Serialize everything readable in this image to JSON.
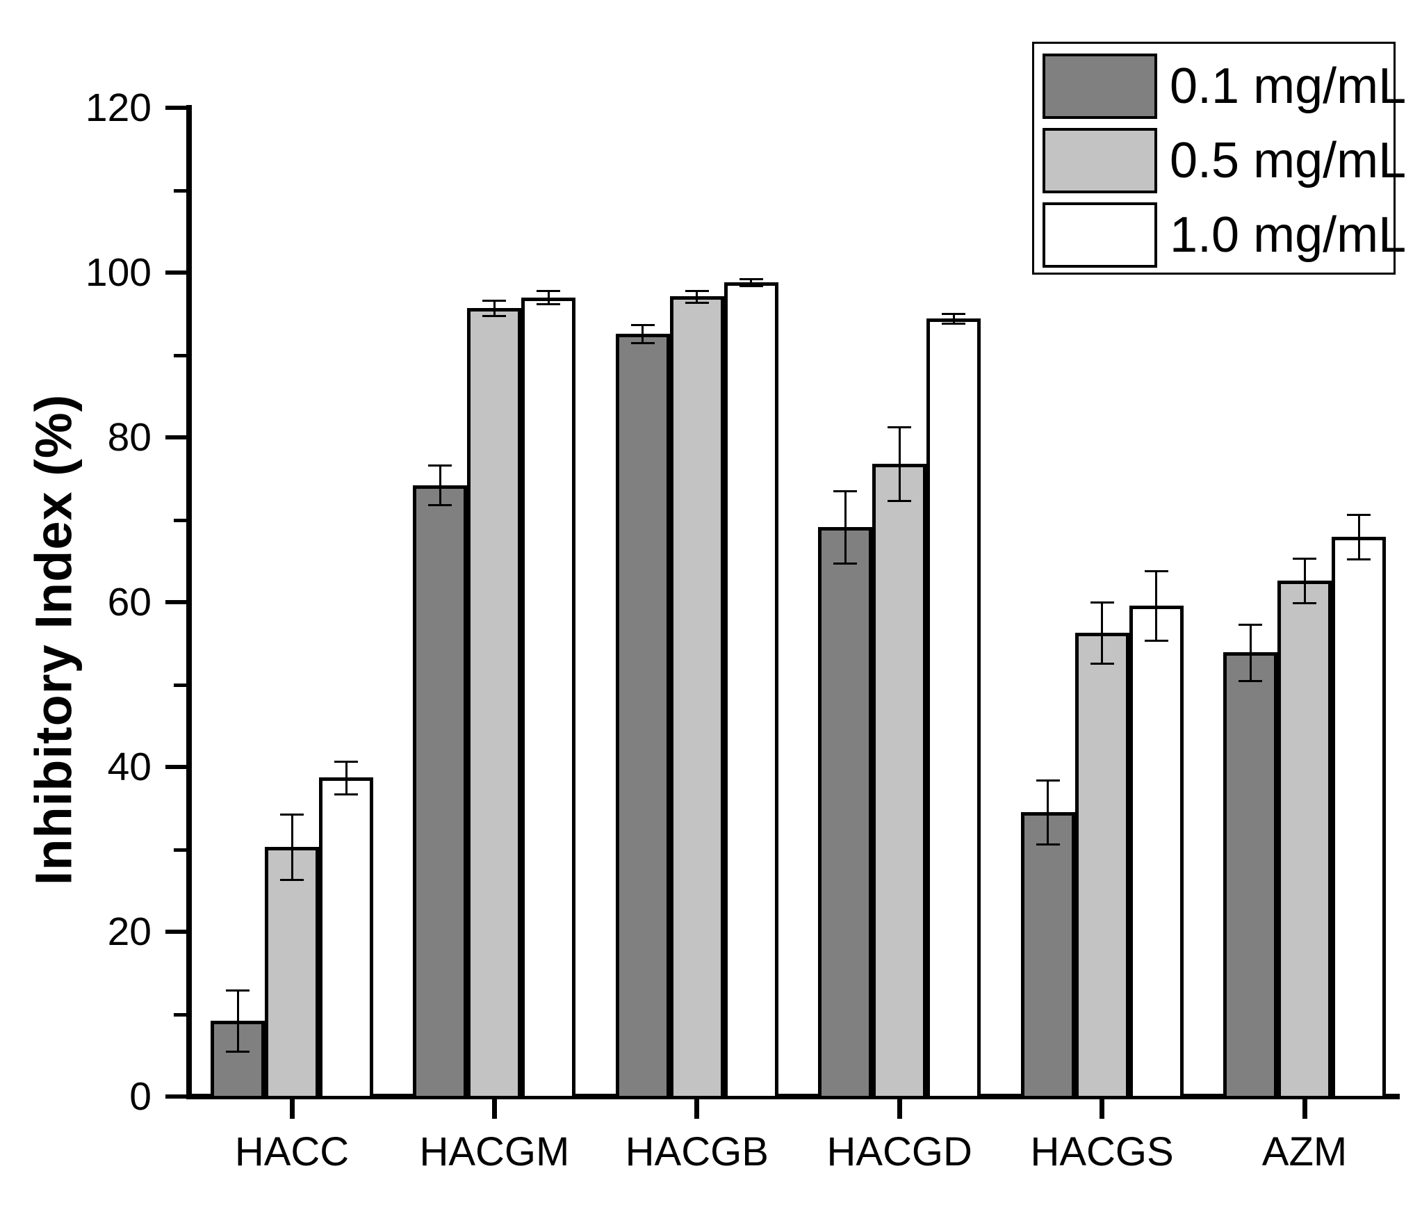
{
  "chart_data": {
    "type": "bar",
    "title": "",
    "xlabel": "",
    "ylabel": "Inhibitory Index (%)",
    "ylim": [
      0,
      120
    ],
    "ytick_step": 20,
    "yminor_step": 10,
    "grid": false,
    "legend_position": "top-right",
    "error_bars": true,
    "categories": [
      "HACC",
      "HACGM",
      "HACGB",
      "HACGD",
      "HACGS",
      "AZM"
    ],
    "series": [
      {
        "name": "0.1 mg/mL",
        "color": "#808080",
        "values": [
          9.2,
          74.2,
          92.6,
          69.1,
          34.5,
          53.9
        ],
        "errors": [
          3.7,
          2.4,
          1.1,
          4.4,
          3.9,
          3.4
        ]
      },
      {
        "name": "0.5 mg/mL",
        "color": "#c3c3c3",
        "values": [
          30.3,
          95.7,
          97.1,
          76.8,
          56.3,
          62.6
        ],
        "errors": [
          4.0,
          0.9,
          0.7,
          4.5,
          3.7,
          2.7
        ]
      },
      {
        "name": "1.0 mg/mL",
        "color": "#ffffff",
        "values": [
          38.7,
          97.0,
          98.8,
          94.4,
          59.6,
          67.9
        ],
        "errors": [
          2.0,
          0.8,
          0.4,
          0.6,
          4.2,
          2.7
        ]
      }
    ]
  }
}
